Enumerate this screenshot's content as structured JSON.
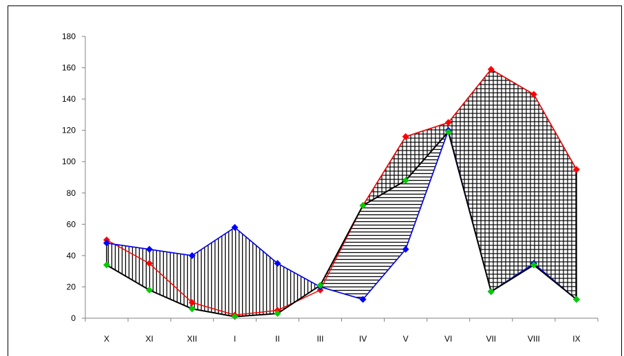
{
  "chart_data": {
    "type": "line",
    "title": "",
    "xlabel": "",
    "ylabel": "",
    "categories": [
      "X",
      "XI",
      "XII",
      "I",
      "II",
      "III",
      "IV",
      "V",
      "VI",
      "VII",
      "VIII",
      "IX"
    ],
    "ylim": [
      0,
      180
    ],
    "yticks": [
      0,
      20,
      40,
      60,
      80,
      100,
      120,
      140,
      160,
      180
    ],
    "grid": false,
    "legend": "none",
    "series": [
      {
        "color": "#ff0000",
        "marker": "diamond",
        "values": [
          50,
          35,
          10,
          2,
          5,
          18,
          72,
          116,
          125,
          159,
          143,
          95
        ]
      },
      {
        "color": "#0000ff",
        "marker": "diamond",
        "values": [
          48,
          44,
          40,
          58,
          35,
          20,
          12,
          44,
          120,
          17,
          35,
          12
        ]
      },
      {
        "color": "#00cc00",
        "marker": "diamond",
        "values": [
          34,
          18,
          6,
          1,
          3,
          21,
          72,
          88,
          119,
          17,
          34,
          12
        ]
      }
    ]
  }
}
